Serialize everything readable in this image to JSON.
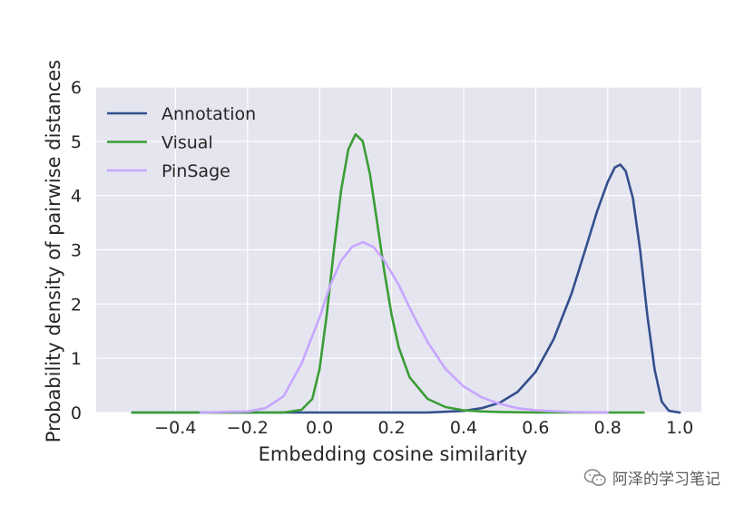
{
  "chart_data": {
    "type": "line",
    "title": "",
    "xlabel": "Embedding cosine similarity",
    "ylabel": "Probability density of pairwise distances",
    "xlim": [
      -0.62,
      1.06
    ],
    "ylim": [
      0,
      6
    ],
    "xticks": [
      -0.4,
      -0.2,
      0.0,
      0.2,
      0.4,
      0.6,
      0.8,
      1.0
    ],
    "xtick_labels": [
      "−0.4",
      "−0.2",
      "0.0",
      "0.2",
      "0.4",
      "0.6",
      "0.8",
      "1.0"
    ],
    "yticks": [
      0,
      1,
      2,
      3,
      4,
      5,
      6
    ],
    "ytick_labels": [
      "0",
      "1",
      "2",
      "3",
      "4",
      "5",
      "6"
    ],
    "grid": true,
    "legend_position": "top-left",
    "background": "#e5e5f0",
    "series": [
      {
        "name": "Annotation",
        "color": "#334f8c",
        "points": [
          [
            -0.52,
            0.0
          ],
          [
            0.3,
            0.0
          ],
          [
            0.4,
            0.03
          ],
          [
            0.45,
            0.08
          ],
          [
            0.5,
            0.18
          ],
          [
            0.55,
            0.38
          ],
          [
            0.6,
            0.75
          ],
          [
            0.65,
            1.35
          ],
          [
            0.7,
            2.2
          ],
          [
            0.74,
            3.05
          ],
          [
            0.77,
            3.7
          ],
          [
            0.8,
            4.25
          ],
          [
            0.82,
            4.52
          ],
          [
            0.835,
            4.57
          ],
          [
            0.85,
            4.45
          ],
          [
            0.87,
            3.95
          ],
          [
            0.89,
            3.0
          ],
          [
            0.91,
            1.8
          ],
          [
            0.93,
            0.8
          ],
          [
            0.95,
            0.2
          ],
          [
            0.97,
            0.03
          ],
          [
            1.0,
            0.0
          ]
        ]
      },
      {
        "name": "Visual",
        "color": "#3a9d35",
        "points": [
          [
            -0.52,
            0.0
          ],
          [
            -0.1,
            0.0
          ],
          [
            -0.05,
            0.05
          ],
          [
            -0.02,
            0.25
          ],
          [
            0.0,
            0.8
          ],
          [
            0.02,
            1.8
          ],
          [
            0.04,
            3.0
          ],
          [
            0.06,
            4.1
          ],
          [
            0.08,
            4.85
          ],
          [
            0.1,
            5.13
          ],
          [
            0.12,
            5.0
          ],
          [
            0.14,
            4.4
          ],
          [
            0.16,
            3.5
          ],
          [
            0.18,
            2.6
          ],
          [
            0.2,
            1.8
          ],
          [
            0.22,
            1.2
          ],
          [
            0.25,
            0.65
          ],
          [
            0.3,
            0.25
          ],
          [
            0.35,
            0.1
          ],
          [
            0.4,
            0.04
          ],
          [
            0.45,
            0.02
          ],
          [
            0.5,
            0.01
          ],
          [
            0.6,
            0.0
          ],
          [
            0.9,
            0.0
          ]
        ]
      },
      {
        "name": "PinSage",
        "color": "#c7a6ff",
        "points": [
          [
            -0.33,
            0.0
          ],
          [
            -0.2,
            0.02
          ],
          [
            -0.15,
            0.08
          ],
          [
            -0.1,
            0.3
          ],
          [
            -0.05,
            0.9
          ],
          [
            0.0,
            1.75
          ],
          [
            0.03,
            2.35
          ],
          [
            0.06,
            2.8
          ],
          [
            0.09,
            3.05
          ],
          [
            0.12,
            3.14
          ],
          [
            0.15,
            3.05
          ],
          [
            0.18,
            2.8
          ],
          [
            0.22,
            2.35
          ],
          [
            0.26,
            1.8
          ],
          [
            0.3,
            1.3
          ],
          [
            0.35,
            0.8
          ],
          [
            0.4,
            0.48
          ],
          [
            0.45,
            0.28
          ],
          [
            0.5,
            0.16
          ],
          [
            0.55,
            0.08
          ],
          [
            0.6,
            0.04
          ],
          [
            0.7,
            0.01
          ],
          [
            0.8,
            0.0
          ]
        ]
      }
    ]
  },
  "watermark": {
    "text": "阿泽的学习笔记",
    "icon": "wechat-icon"
  }
}
